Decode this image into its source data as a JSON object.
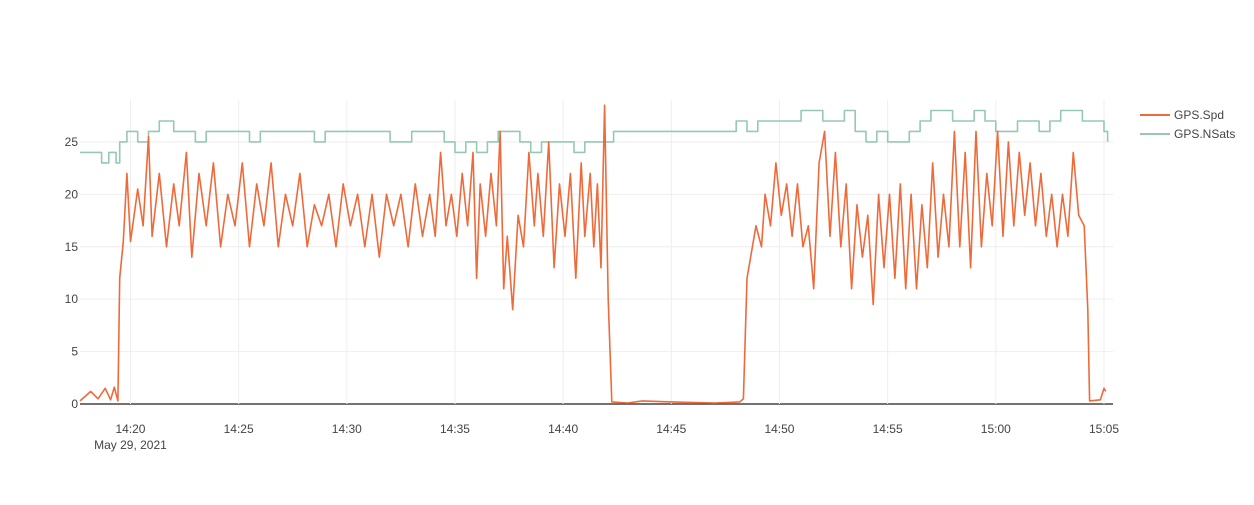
{
  "chart_data": {
    "type": "line",
    "x_axis": {
      "kind": "time",
      "range": [
        "2021-05-29 14:17:40",
        "2021-05-29 15:05:25"
      ],
      "ticks": [
        "14:20",
        "14:25",
        "14:30",
        "14:35",
        "14:40",
        "14:45",
        "14:50",
        "14:55",
        "15:00",
        "15:05"
      ],
      "tick_times": [
        "14:20",
        "14:25",
        "14:30",
        "14:35",
        "14:40",
        "14:45",
        "14:50",
        "14:55",
        "15:00",
        "15:05"
      ],
      "date_label": "May 29, 2021"
    },
    "y_axis": {
      "range": [
        0,
        29
      ],
      "ticks": [
        0,
        5,
        10,
        15,
        20,
        25
      ]
    },
    "grid": true,
    "legend_position": "top-right",
    "series": [
      {
        "name": "GPS.Spd",
        "color": "#ef6a3a",
        "points": [
          [
            "14:17:40",
            0.3
          ],
          [
            "14:18:10",
            1.2
          ],
          [
            "14:18:30",
            0.5
          ],
          [
            "14:18:50",
            1.5
          ],
          [
            "14:19:05",
            0.4
          ],
          [
            "14:19:15",
            1.6
          ],
          [
            "14:19:25",
            0.3
          ],
          [
            "14:19:30",
            12
          ],
          [
            "14:19:40",
            15.5
          ],
          [
            "14:19:50",
            22
          ],
          [
            "14:20:00",
            15.5
          ],
          [
            "14:20:20",
            20.5
          ],
          [
            "14:20:35",
            17
          ],
          [
            "14:20:50",
            25.5
          ],
          [
            "14:21:00",
            16
          ],
          [
            "14:21:20",
            22
          ],
          [
            "14:21:40",
            15
          ],
          [
            "14:22:00",
            21
          ],
          [
            "14:22:15",
            17
          ],
          [
            "14:22:35",
            24
          ],
          [
            "14:22:50",
            14
          ],
          [
            "14:23:10",
            22
          ],
          [
            "14:23:30",
            17
          ],
          [
            "14:23:50",
            23
          ],
          [
            "14:24:10",
            15
          ],
          [
            "14:24:30",
            20
          ],
          [
            "14:24:50",
            17
          ],
          [
            "14:25:10",
            23
          ],
          [
            "14:25:30",
            15
          ],
          [
            "14:25:50",
            21
          ],
          [
            "14:26:10",
            17
          ],
          [
            "14:26:30",
            23
          ],
          [
            "14:26:50",
            15
          ],
          [
            "14:27:10",
            20
          ],
          [
            "14:27:30",
            17
          ],
          [
            "14:27:50",
            22
          ],
          [
            "14:28:10",
            15
          ],
          [
            "14:28:30",
            19
          ],
          [
            "14:28:50",
            17
          ],
          [
            "14:29:10",
            20
          ],
          [
            "14:29:30",
            15
          ],
          [
            "14:29:50",
            21
          ],
          [
            "14:30:10",
            17
          ],
          [
            "14:30:30",
            20
          ],
          [
            "14:30:50",
            15
          ],
          [
            "14:31:10",
            20
          ],
          [
            "14:31:30",
            14
          ],
          [
            "14:31:50",
            20
          ],
          [
            "14:32:10",
            17
          ],
          [
            "14:32:30",
            20
          ],
          [
            "14:32:50",
            15
          ],
          [
            "14:33:10",
            21
          ],
          [
            "14:33:30",
            16
          ],
          [
            "14:33:50",
            20
          ],
          [
            "14:34:05",
            16
          ],
          [
            "14:34:20",
            24
          ],
          [
            "14:34:35",
            17
          ],
          [
            "14:34:50",
            20
          ],
          [
            "14:35:05",
            16
          ],
          [
            "14:35:20",
            22
          ],
          [
            "14:35:35",
            17
          ],
          [
            "14:35:50",
            24
          ],
          [
            "14:36:00",
            12
          ],
          [
            "14:36:10",
            21
          ],
          [
            "14:36:25",
            16
          ],
          [
            "14:36:40",
            22
          ],
          [
            "14:36:55",
            17
          ],
          [
            "14:37:05",
            26
          ],
          [
            "14:37:15",
            11
          ],
          [
            "14:37:25",
            16
          ],
          [
            "14:37:40",
            9
          ],
          [
            "14:37:55",
            18
          ],
          [
            "14:38:10",
            15
          ],
          [
            "14:38:25",
            24
          ],
          [
            "14:38:40",
            17
          ],
          [
            "14:38:50",
            22
          ],
          [
            "14:39:05",
            16
          ],
          [
            "14:39:20",
            25
          ],
          [
            "14:39:35",
            13
          ],
          [
            "14:39:50",
            21
          ],
          [
            "14:40:05",
            16
          ],
          [
            "14:40:20",
            22
          ],
          [
            "14:40:35",
            12
          ],
          [
            "14:40:50",
            23
          ],
          [
            "14:41:00",
            16
          ],
          [
            "14:41:15",
            22
          ],
          [
            "14:41:25",
            15
          ],
          [
            "14:41:35",
            21
          ],
          [
            "14:41:45",
            13
          ],
          [
            "14:41:55",
            28.5
          ],
          [
            "14:42:05",
            10
          ],
          [
            "14:42:15",
            0.2
          ],
          [
            "14:43:00",
            0.1
          ],
          [
            "14:43:40",
            0.3
          ],
          [
            "14:45:00",
            0.2
          ],
          [
            "14:47:00",
            0.1
          ],
          [
            "14:48:10",
            0.2
          ],
          [
            "14:48:20",
            0.5
          ],
          [
            "14:48:30",
            12
          ],
          [
            "14:48:40",
            14
          ],
          [
            "14:48:55",
            17
          ],
          [
            "14:49:10",
            15
          ],
          [
            "14:49:20",
            20
          ],
          [
            "14:49:35",
            17
          ],
          [
            "14:49:50",
            23
          ],
          [
            "14:50:05",
            18
          ],
          [
            "14:50:20",
            21
          ],
          [
            "14:50:35",
            16
          ],
          [
            "14:50:50",
            21
          ],
          [
            "14:51:05",
            15
          ],
          [
            "14:51:20",
            17
          ],
          [
            "14:51:35",
            11
          ],
          [
            "14:51:50",
            23
          ],
          [
            "14:52:05",
            26
          ],
          [
            "14:52:20",
            16
          ],
          [
            "14:52:35",
            24
          ],
          [
            "14:52:50",
            15
          ],
          [
            "14:53:05",
            21
          ],
          [
            "14:53:20",
            11
          ],
          [
            "14:53:35",
            19
          ],
          [
            "14:53:50",
            14
          ],
          [
            "14:54:05",
            18
          ],
          [
            "14:54:20",
            9.5
          ],
          [
            "14:54:35",
            20
          ],
          [
            "14:54:50",
            13
          ],
          [
            "14:55:05",
            20
          ],
          [
            "14:55:20",
            12
          ],
          [
            "14:55:35",
            21
          ],
          [
            "14:55:50",
            11
          ],
          [
            "14:56:05",
            20
          ],
          [
            "14:56:20",
            11
          ],
          [
            "14:56:35",
            19
          ],
          [
            "14:56:50",
            13
          ],
          [
            "14:57:05",
            23
          ],
          [
            "14:57:20",
            14
          ],
          [
            "14:57:35",
            20
          ],
          [
            "14:57:50",
            15
          ],
          [
            "14:58:05",
            26
          ],
          [
            "14:58:20",
            15
          ],
          [
            "14:58:35",
            24
          ],
          [
            "14:58:50",
            13
          ],
          [
            "14:59:05",
            26
          ],
          [
            "14:59:20",
            15
          ],
          [
            "14:59:35",
            22
          ],
          [
            "14:59:50",
            17
          ],
          [
            "15:00:05",
            26
          ],
          [
            "15:00:20",
            16
          ],
          [
            "15:00:35",
            25
          ],
          [
            "15:00:50",
            17
          ],
          [
            "15:01:05",
            24
          ],
          [
            "15:01:20",
            18
          ],
          [
            "15:01:35",
            23
          ],
          [
            "15:01:50",
            17
          ],
          [
            "15:02:05",
            22
          ],
          [
            "15:02:20",
            16
          ],
          [
            "15:02:35",
            20
          ],
          [
            "15:02:50",
            15
          ],
          [
            "15:03:05",
            20
          ],
          [
            "15:03:20",
            16
          ],
          [
            "15:03:35",
            24
          ],
          [
            "15:03:50",
            18
          ],
          [
            "15:04:05",
            17
          ],
          [
            "15:04:15",
            9
          ],
          [
            "15:04:20",
            0.3
          ],
          [
            "15:04:50",
            0.4
          ],
          [
            "15:05:00",
            1.5
          ],
          [
            "15:05:05",
            1.2
          ]
        ]
      },
      {
        "name": "GPS.NSats",
        "color": "#96c8b2",
        "points": [
          [
            "14:17:40",
            24
          ],
          [
            "14:18:30",
            24
          ],
          [
            "14:18:40",
            23
          ],
          [
            "14:19:00",
            24
          ],
          [
            "14:19:20",
            23
          ],
          [
            "14:19:30",
            25
          ],
          [
            "14:19:50",
            26
          ],
          [
            "14:20:20",
            25
          ],
          [
            "14:20:50",
            26
          ],
          [
            "14:21:20",
            27
          ],
          [
            "14:22:00",
            26
          ],
          [
            "14:23:00",
            25
          ],
          [
            "14:23:30",
            26
          ],
          [
            "14:25:00",
            26
          ],
          [
            "14:25:30",
            25
          ],
          [
            "14:26:00",
            26
          ],
          [
            "14:28:00",
            26
          ],
          [
            "14:28:30",
            25
          ],
          [
            "14:29:00",
            26
          ],
          [
            "14:31:00",
            26
          ],
          [
            "14:32:00",
            25
          ],
          [
            "14:33:00",
            26
          ],
          [
            "14:34:30",
            25
          ],
          [
            "14:35:00",
            24
          ],
          [
            "14:35:30",
            25
          ],
          [
            "14:36:00",
            24
          ],
          [
            "14:36:30",
            25
          ],
          [
            "14:37:00",
            26
          ],
          [
            "14:38:00",
            25
          ],
          [
            "14:38:30",
            24
          ],
          [
            "14:39:00",
            25
          ],
          [
            "14:40:00",
            25
          ],
          [
            "14:40:30",
            24
          ],
          [
            "14:41:00",
            25
          ],
          [
            "14:42:00",
            25
          ],
          [
            "14:42:20",
            26
          ],
          [
            "14:48:00",
            27
          ],
          [
            "14:48:30",
            26
          ],
          [
            "14:49:00",
            27
          ],
          [
            "14:50:00",
            27
          ],
          [
            "14:51:00",
            28
          ],
          [
            "14:52:00",
            27
          ],
          [
            "14:53:00",
            28
          ],
          [
            "14:53:30",
            26
          ],
          [
            "14:54:00",
            25
          ],
          [
            "14:54:30",
            26
          ],
          [
            "14:55:00",
            25
          ],
          [
            "14:56:00",
            26
          ],
          [
            "14:56:30",
            27
          ],
          [
            "14:57:00",
            28
          ],
          [
            "14:58:00",
            27
          ],
          [
            "14:59:00",
            28
          ],
          [
            "14:59:30",
            27
          ],
          [
            "15:00:00",
            26
          ],
          [
            "15:01:00",
            27
          ],
          [
            "15:02:00",
            26
          ],
          [
            "15:02:30",
            27
          ],
          [
            "15:03:00",
            28
          ],
          [
            "15:04:00",
            27
          ],
          [
            "15:04:40",
            27
          ],
          [
            "15:05:00",
            26
          ],
          [
            "15:05:10",
            25
          ]
        ]
      }
    ]
  }
}
